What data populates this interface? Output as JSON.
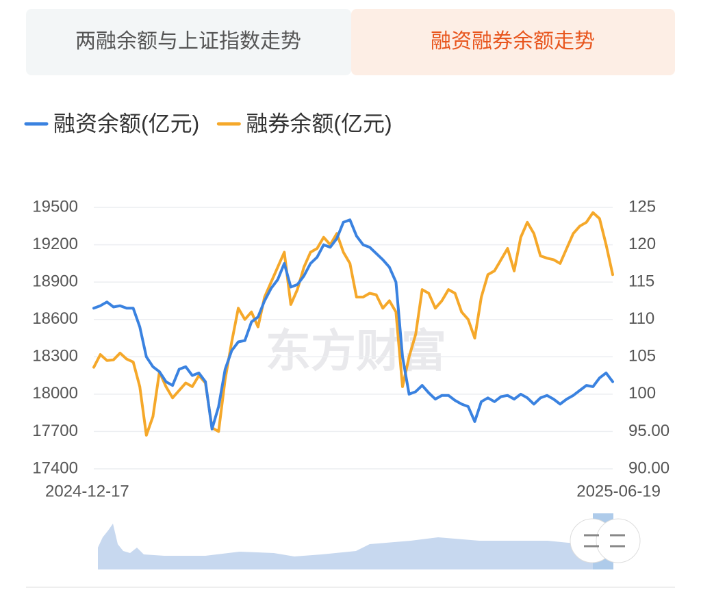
{
  "tabs": [
    "两融余额与上证指数走势",
    "融资融券余额走势"
  ],
  "active_tab": 1,
  "watermark": "东方财富",
  "chart_data": {
    "type": "line",
    "categories": [
      "2024-12-17",
      null,
      null,
      null,
      null,
      null,
      null,
      null,
      null,
      null,
      null,
      null,
      null,
      null,
      null,
      null,
      null,
      null,
      null,
      null,
      null,
      null,
      null,
      null,
      null,
      null,
      null,
      null,
      null,
      null,
      null,
      null,
      null,
      null,
      null,
      null,
      null,
      null,
      null,
      null,
      null,
      null,
      null,
      null,
      null,
      null,
      null,
      null,
      null,
      null,
      null,
      null,
      null,
      null,
      null,
      null,
      null,
      null,
      null,
      null,
      null,
      null,
      null,
      null,
      null,
      null,
      null,
      null,
      null,
      null,
      null,
      null,
      null,
      null,
      null,
      null,
      null,
      null,
      null,
      "2025-06-19"
    ],
    "series": [
      {
        "name": "融资余额(亿元)",
        "color": "#3a82e0",
        "axis": "y",
        "values": [
          18690,
          18710,
          18740,
          18700,
          18710,
          18690,
          18690,
          18540,
          18300,
          18220,
          18180,
          18100,
          18070,
          18200,
          18220,
          18150,
          18170,
          18100,
          17720,
          17900,
          18200,
          18350,
          18420,
          18430,
          18580,
          18620,
          18750,
          18850,
          18920,
          19050,
          18860,
          18880,
          18950,
          19050,
          19100,
          19200,
          19180,
          19250,
          19380,
          19400,
          19270,
          19200,
          19180,
          19130,
          19080,
          19020,
          18900,
          18300,
          18000,
          18020,
          18070,
          18010,
          17960,
          17990,
          17990,
          17950,
          17920,
          17900,
          17780,
          17940,
          17970,
          17940,
          17980,
          17990,
          17960,
          18000,
          17970,
          17920,
          17970,
          17990,
          17960,
          17920,
          17960,
          17990,
          18030,
          18070,
          18060,
          18130,
          18170,
          18100
        ]
      },
      {
        "name": "融券余额(亿元)",
        "color": "#f5a82a",
        "axis": "y2",
        "values": [
          103.6,
          105.3,
          104.5,
          104.6,
          105.5,
          104.7,
          104.3,
          101,
          94.5,
          97,
          103,
          101,
          99.5,
          100.5,
          101.5,
          101,
          102.5,
          101.5,
          95.5,
          95,
          102,
          107,
          111.5,
          110,
          111,
          109,
          113,
          115,
          117,
          119,
          112,
          114,
          117,
          119,
          119.5,
          121,
          120,
          121.5,
          119,
          117.5,
          113,
          113,
          113.5,
          113.3,
          111.5,
          112.5,
          111,
          101,
          105,
          108,
          114,
          113.5,
          111.5,
          112.5,
          114,
          113.5,
          111,
          110,
          107.5,
          113,
          116,
          116.5,
          118,
          119.5,
          116.5,
          121,
          123,
          121.5,
          118.5,
          118.2,
          118,
          117.5,
          119.5,
          121.5,
          122.5,
          123,
          124.3,
          123.5,
          120,
          116
        ]
      }
    ],
    "ylim": [
      17400,
      19500
    ],
    "yticks": [
      17400,
      17700,
      18000,
      18300,
      18600,
      18900,
      19200,
      19500
    ],
    "y2lim": [
      90,
      125
    ],
    "y2ticks": [
      {
        "value": 90,
        "label": "90.00"
      },
      {
        "value": 95,
        "label": "95.00"
      },
      100,
      105,
      110,
      115,
      120,
      125
    ],
    "grid": true
  }
}
